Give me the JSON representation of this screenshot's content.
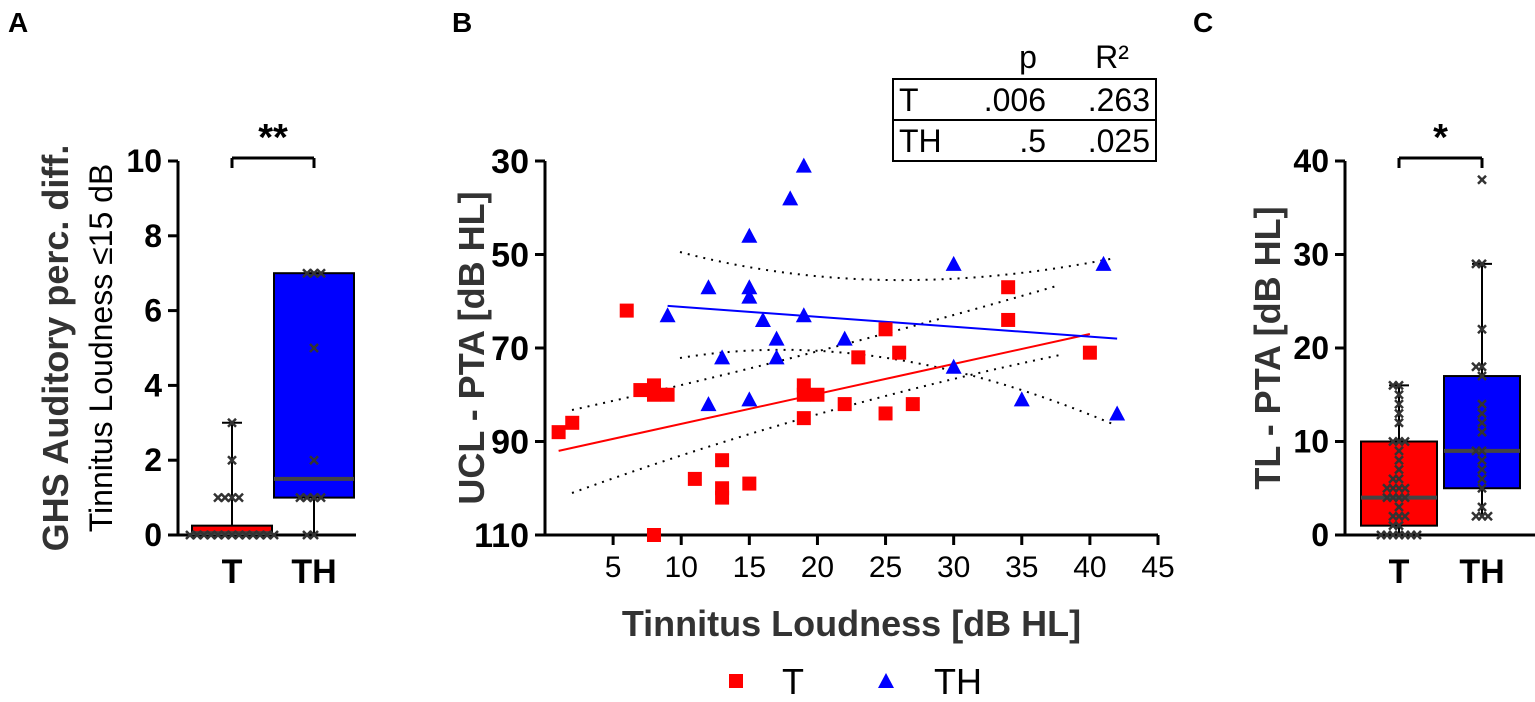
{
  "chart_data": [
    {
      "panel": "A",
      "type": "box",
      "ylabel_line1": "GHS Auditory perc. diff.",
      "ylabel_line2": "Tinnitus Loudness ≤15 dB",
      "ylim": [
        0,
        10
      ],
      "yticks": [
        "0",
        "2",
        "4",
        "6",
        "8",
        "10"
      ],
      "significance": "**",
      "groups": [
        {
          "name": "T",
          "color": "#ff0000",
          "min": 0,
          "q1": 0,
          "median": 0.05,
          "q3": 0.25,
          "max": 3,
          "points": [
            0,
            0,
            0,
            0,
            0,
            0,
            0,
            0,
            0,
            0,
            0,
            0,
            0,
            1,
            1,
            1,
            1,
            2,
            3
          ]
        },
        {
          "name": "TH",
          "color": "#0000ff",
          "min": 0,
          "q1": 1,
          "median": 1.5,
          "q3": 7,
          "max": 7,
          "points": [
            0,
            0,
            1,
            1,
            1,
            1,
            2,
            5,
            7,
            7,
            7
          ]
        }
      ]
    },
    {
      "panel": "B",
      "type": "scatter",
      "xlabel": "Tinnitus Loudness [dB HL]",
      "ylabel": "UCL - PTA [dB HL]",
      "xlim": [
        0,
        45
      ],
      "ylim": [
        30,
        110
      ],
      "y_inverted": true,
      "xticks": [
        "5",
        "10",
        "15",
        "20",
        "25",
        "30",
        "35",
        "40",
        "45"
      ],
      "yticks": [
        "30",
        "50",
        "70",
        "90",
        "110"
      ],
      "table": {
        "headers": [
          "",
          "p",
          "R²"
        ],
        "rows": [
          [
            "T",
            ".006",
            ".263"
          ],
          [
            "TH",
            ".5",
            ".025"
          ]
        ]
      },
      "legend": [
        "T",
        "TH"
      ],
      "series": [
        {
          "name": "T",
          "marker": "square",
          "color": "#ff0000",
          "points": [
            [
              1,
              88
            ],
            [
              2,
              86
            ],
            [
              6,
              62
            ],
            [
              7,
              79
            ],
            [
              8,
              78
            ],
            [
              8,
              80
            ],
            [
              9,
              80
            ],
            [
              8,
              110
            ],
            [
              11,
              98
            ],
            [
              13,
              94
            ],
            [
              13,
              100
            ],
            [
              13,
              102
            ],
            [
              15,
              99
            ],
            [
              19,
              78
            ],
            [
              19,
              80
            ],
            [
              19,
              85
            ],
            [
              20,
              80
            ],
            [
              22,
              82
            ],
            [
              23,
              72
            ],
            [
              25,
              66
            ],
            [
              25,
              84
            ],
            [
              26,
              71
            ],
            [
              27,
              82
            ],
            [
              34,
              57
            ],
            [
              34,
              64
            ],
            [
              40,
              71
            ]
          ],
          "fit": [
            [
              1,
              92
            ],
            [
              40,
              67
            ]
          ]
        },
        {
          "name": "TH",
          "marker": "triangle",
          "color": "#0000ff",
          "points": [
            [
              9,
              63
            ],
            [
              12,
              57
            ],
            [
              12,
              82
            ],
            [
              13,
              72
            ],
            [
              15,
              46
            ],
            [
              15,
              57
            ],
            [
              15,
              59
            ],
            [
              15,
              81
            ],
            [
              16,
              64
            ],
            [
              17,
              68
            ],
            [
              17,
              72
            ],
            [
              18,
              38
            ],
            [
              19,
              31
            ],
            [
              19,
              63
            ],
            [
              22,
              68
            ],
            [
              30,
              52
            ],
            [
              30,
              74
            ],
            [
              35,
              81
            ],
            [
              41,
              52
            ],
            [
              42,
              84
            ]
          ],
          "fit": [
            [
              9,
              61
            ],
            [
              42,
              68
            ]
          ]
        }
      ]
    },
    {
      "panel": "C",
      "type": "box",
      "ylabel": "TL - PTA [dB HL]",
      "ylim": [
        0,
        40
      ],
      "yticks": [
        "0",
        "10",
        "20",
        "30",
        "40"
      ],
      "significance": "*",
      "groups": [
        {
          "name": "T",
          "color": "#ff0000",
          "min": 0,
          "q1": 1,
          "median": 4,
          "q3": 10,
          "max": 16,
          "points": [
            0,
            0,
            0,
            0,
            0,
            0,
            0,
            1,
            1,
            2,
            2,
            2,
            3,
            4,
            4,
            4,
            4,
            5,
            5,
            5,
            5,
            6,
            6,
            7,
            8,
            9,
            10,
            10,
            10,
            12,
            13,
            14,
            15,
            16,
            16
          ]
        },
        {
          "name": "TH",
          "color": "#0000ff",
          "min": 2,
          "q1": 5,
          "median": 9,
          "q3": 17,
          "max": 29,
          "points": [
            2,
            2,
            2,
            3,
            5,
            6,
            7,
            8,
            9,
            9,
            11,
            12,
            13,
            14,
            17,
            18,
            18,
            22,
            29,
            29,
            38
          ]
        }
      ]
    }
  ]
}
